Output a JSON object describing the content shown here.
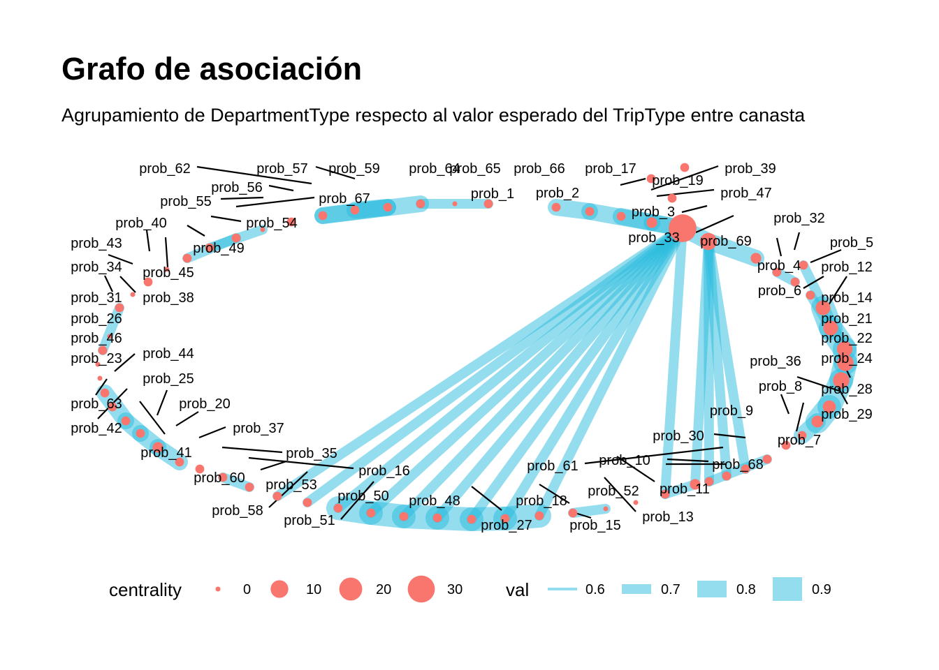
{
  "title": "Grafo de asociación",
  "subtitle": "Agrupamiento de DepartmentType respecto al valor esperado del TripType entre canasta",
  "colors": {
    "node": "#F8766D",
    "edge": "#29BCDD",
    "leader": "#000000",
    "background": "#FFFFFF"
  },
  "legend": {
    "centrality": {
      "title": "centrality",
      "values": [
        0,
        10,
        20,
        30
      ]
    },
    "val": {
      "title": "val",
      "values": [
        0.6,
        0.7,
        0.8,
        0.9
      ]
    }
  },
  "graph": {
    "nodes": [
      {
        "id": "prob_1",
        "centrality": 1
      },
      {
        "id": "prob_2",
        "centrality": 1
      },
      {
        "id": "prob_3",
        "centrality": 2
      },
      {
        "id": "prob_4",
        "centrality": 2
      },
      {
        "id": "prob_5",
        "centrality": 1
      },
      {
        "id": "prob_6",
        "centrality": 1
      },
      {
        "id": "prob_7",
        "centrality": 3
      },
      {
        "id": "prob_8",
        "centrality": 1
      },
      {
        "id": "prob_9",
        "centrality": 1
      },
      {
        "id": "prob_10",
        "centrality": 1
      },
      {
        "id": "prob_11",
        "centrality": 2
      },
      {
        "id": "prob_12",
        "centrality": 1
      },
      {
        "id": "prob_13",
        "centrality": 0
      },
      {
        "id": "prob_14",
        "centrality": 6
      },
      {
        "id": "prob_15",
        "centrality": 1
      },
      {
        "id": "prob_16",
        "centrality": 1
      },
      {
        "id": "prob_17",
        "centrality": 1
      },
      {
        "id": "prob_18",
        "centrality": 1
      },
      {
        "id": "prob_19",
        "centrality": 1
      },
      {
        "id": "prob_20",
        "centrality": 1
      },
      {
        "id": "prob_21",
        "centrality": 6
      },
      {
        "id": "prob_22",
        "centrality": 7
      },
      {
        "id": "prob_23",
        "centrality": 1
      },
      {
        "id": "prob_24",
        "centrality": 8
      },
      {
        "id": "prob_25",
        "centrality": 2
      },
      {
        "id": "prob_26",
        "centrality": 0
      },
      {
        "id": "prob_27",
        "centrality": 1
      },
      {
        "id": "prob_28",
        "centrality": 8
      },
      {
        "id": "prob_29",
        "centrality": 4
      },
      {
        "id": "prob_30",
        "centrality": 1
      },
      {
        "id": "prob_31",
        "centrality": 1
      },
      {
        "id": "prob_32",
        "centrality": 1
      },
      {
        "id": "prob_33",
        "centrality": 32
      },
      {
        "id": "prob_34",
        "centrality": 0
      },
      {
        "id": "prob_35",
        "centrality": 1
      },
      {
        "id": "prob_36",
        "centrality": 1
      },
      {
        "id": "prob_37",
        "centrality": 1
      },
      {
        "id": "prob_38",
        "centrality": 1
      },
      {
        "id": "prob_39",
        "centrality": 1
      },
      {
        "id": "prob_40",
        "centrality": 0
      },
      {
        "id": "prob_41",
        "centrality": 1
      },
      {
        "id": "prob_42",
        "centrality": 1
      },
      {
        "id": "prob_43",
        "centrality": 0
      },
      {
        "id": "prob_44",
        "centrality": 1
      },
      {
        "id": "prob_45",
        "centrality": 1
      },
      {
        "id": "prob_46",
        "centrality": 0
      },
      {
        "id": "prob_47",
        "centrality": 1
      },
      {
        "id": "prob_48",
        "centrality": 1
      },
      {
        "id": "prob_49",
        "centrality": 1
      },
      {
        "id": "prob_50",
        "centrality": 1
      },
      {
        "id": "prob_51",
        "centrality": 1
      },
      {
        "id": "prob_52",
        "centrality": 0
      },
      {
        "id": "prob_53",
        "centrality": 1
      },
      {
        "id": "prob_54",
        "centrality": 0
      },
      {
        "id": "prob_55",
        "centrality": 1
      },
      {
        "id": "prob_56",
        "centrality": 1
      },
      {
        "id": "prob_57",
        "centrality": 1
      },
      {
        "id": "prob_58",
        "centrality": 1
      },
      {
        "id": "prob_59",
        "centrality": 1
      },
      {
        "id": "prob_60",
        "centrality": 1
      },
      {
        "id": "prob_61",
        "centrality": 1
      },
      {
        "id": "prob_62",
        "centrality": 1
      },
      {
        "id": "prob_63",
        "centrality": 1
      },
      {
        "id": "prob_64",
        "centrality": 1
      },
      {
        "id": "prob_65",
        "centrality": 0
      },
      {
        "id": "prob_66",
        "centrality": 1
      },
      {
        "id": "prob_67",
        "centrality": 1
      },
      {
        "id": "prob_68",
        "centrality": 1
      },
      {
        "id": "prob_69",
        "centrality": 9
      }
    ],
    "edges": [
      {
        "from": "prob_33",
        "to": "prob_53",
        "val": 0.7
      },
      {
        "from": "prob_33",
        "to": "prob_51",
        "val": 0.7
      },
      {
        "from": "prob_33",
        "to": "prob_50",
        "val": 0.7
      },
      {
        "from": "prob_33",
        "to": "prob_16",
        "val": 0.7
      },
      {
        "from": "prob_33",
        "to": "prob_48",
        "val": 0.7
      },
      {
        "from": "prob_33",
        "to": "prob_27",
        "val": 0.7
      },
      {
        "from": "prob_33",
        "to": "prob_18",
        "val": 0.7
      },
      {
        "from": "prob_33",
        "to": "prob_35",
        "val": 0.7
      },
      {
        "from": "prob_33",
        "to": "prob_58",
        "val": 0.7
      },
      {
        "from": "prob_33",
        "to": "prob_61",
        "val": 0.7
      },
      {
        "from": "prob_69",
        "to": "prob_11",
        "val": 0.7
      },
      {
        "from": "prob_69",
        "to": "prob_10",
        "val": 0.7
      },
      {
        "from": "prob_69",
        "to": "prob_30",
        "val": 0.7
      },
      {
        "from": "prob_69",
        "to": "prob_9",
        "val": 0.7
      },
      {
        "from": "prob_2",
        "to": "prob_66",
        "val": 0.8
      },
      {
        "from": "prob_66",
        "to": "prob_3",
        "val": 0.8
      },
      {
        "from": "prob_3",
        "to": "prob_33",
        "val": 0.8
      },
      {
        "from": "prob_17",
        "to": "prob_33",
        "val": 0.8
      },
      {
        "from": "prob_33",
        "to": "prob_69",
        "val": 0.8
      },
      {
        "from": "prob_69",
        "to": "prob_4",
        "val": 0.8
      },
      {
        "from": "prob_1",
        "to": "prob_64",
        "val": 0.7
      },
      {
        "from": "prob_67",
        "to": "prob_59",
        "val": 0.8
      },
      {
        "from": "prob_59",
        "to": "prob_57",
        "val": 0.8
      },
      {
        "from": "prob_57",
        "to": "prob_64",
        "val": 0.8
      },
      {
        "from": "prob_55",
        "to": "prob_54",
        "val": 0.7
      },
      {
        "from": "prob_49",
        "to": "prob_56",
        "val": 0.7
      },
      {
        "from": "prob_31",
        "to": "prob_38",
        "val": 0.7
      },
      {
        "from": "prob_23",
        "to": "prob_63",
        "val": 0.8
      },
      {
        "from": "prob_63",
        "to": "prob_42",
        "val": 0.8
      },
      {
        "from": "prob_42",
        "to": "prob_25",
        "val": 0.8
      },
      {
        "from": "prob_25",
        "to": "prob_41",
        "val": 0.8
      },
      {
        "from": "prob_60",
        "to": "prob_37",
        "val": 0.7
      },
      {
        "from": "prob_53",
        "to": "prob_51",
        "val": 0.9
      },
      {
        "from": "prob_51",
        "to": "prob_50",
        "val": 0.9
      },
      {
        "from": "prob_50",
        "to": "prob_16",
        "val": 0.9
      },
      {
        "from": "prob_16",
        "to": "prob_48",
        "val": 0.9
      },
      {
        "from": "prob_48",
        "to": "prob_27",
        "val": 0.9
      },
      {
        "from": "prob_27",
        "to": "prob_18",
        "val": 0.9
      },
      {
        "from": "prob_15",
        "to": "prob_52",
        "val": 0.7
      },
      {
        "from": "prob_11",
        "to": "prob_61",
        "val": 0.7
      },
      {
        "from": "prob_68",
        "to": "prob_10",
        "val": 0.7
      },
      {
        "from": "prob_6",
        "to": "prob_32",
        "val": 0.7
      },
      {
        "from": "prob_14",
        "to": "prob_21",
        "val": 0.9
      },
      {
        "from": "prob_21",
        "to": "prob_22",
        "val": 0.9
      },
      {
        "from": "prob_22",
        "to": "prob_24",
        "val": 0.9
      },
      {
        "from": "prob_24",
        "to": "prob_28",
        "val": 0.9
      },
      {
        "from": "prob_28",
        "to": "prob_29",
        "val": 0.9
      },
      {
        "from": "prob_29",
        "to": "prob_7",
        "val": 0.9
      },
      {
        "from": "prob_7",
        "to": "prob_36",
        "val": 0.8
      },
      {
        "from": "prob_21",
        "to": "prob_12",
        "val": 0.7
      },
      {
        "from": "prob_22",
        "to": "prob_5",
        "val": 0.7
      }
    ]
  }
}
